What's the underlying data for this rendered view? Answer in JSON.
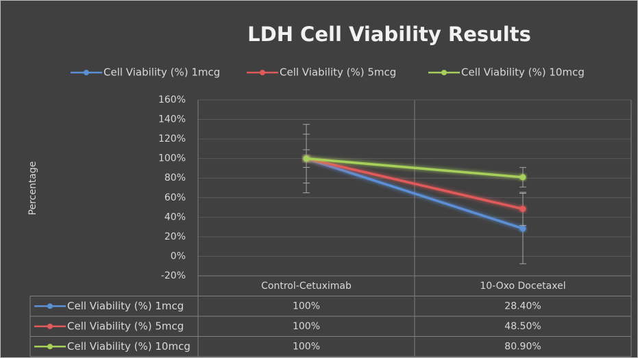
{
  "chart_data": {
    "type": "line",
    "title": "LDH Cell Viability Results",
    "y_label": "Percentage",
    "categories": [
      "Control-Cetuximab",
      "10-Oxo Docetaxel"
    ],
    "series": [
      {
        "name": "Cell Viability (%) 1mcg",
        "color": "#5b8fd6",
        "values": [
          100,
          28.4
        ],
        "value_labels": [
          "100%",
          "28.40%"
        ],
        "error": [
          35,
          36
        ]
      },
      {
        "name": "Cell Viability (%) 5mcg",
        "color": "#e05a5a",
        "values": [
          100,
          48.5
        ],
        "value_labels": [
          "100%",
          "48.50%"
        ],
        "error": [
          25,
          17
        ]
      },
      {
        "name": "Cell Viability (%) 10mcg",
        "color": "#a6d05a",
        "values": [
          100,
          80.9
        ],
        "value_labels": [
          "100%",
          "80.90%"
        ],
        "error": [
          9,
          10
        ]
      }
    ],
    "ylim": [
      -20,
      160
    ],
    "yticks": [
      {
        "value": -20,
        "label": "-20%"
      },
      {
        "value": 0,
        "label": "0%"
      },
      {
        "value": 20,
        "label": "20%"
      },
      {
        "value": 40,
        "label": "40%"
      },
      {
        "value": 60,
        "label": "60%"
      },
      {
        "value": 80,
        "label": "80%"
      },
      {
        "value": 100,
        "label": "100%"
      },
      {
        "value": 120,
        "label": "120%"
      },
      {
        "value": 140,
        "label": "140%"
      },
      {
        "value": 160,
        "label": "160%"
      }
    ],
    "grid": true,
    "legend": "top"
  }
}
